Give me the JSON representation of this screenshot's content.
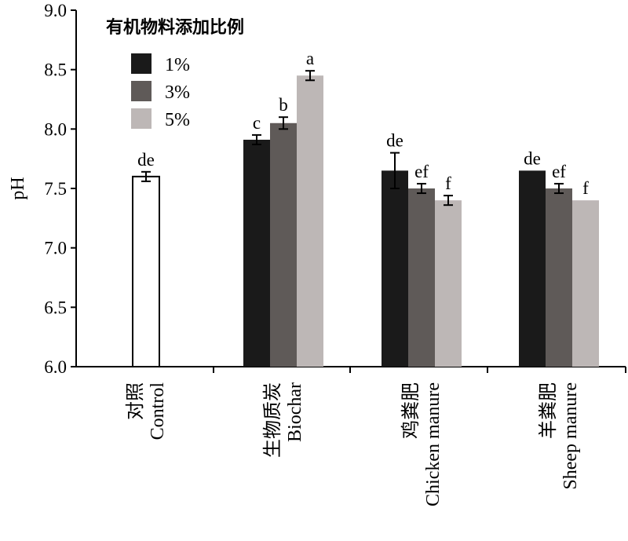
{
  "chart_data": {
    "type": "bar",
    "ylabel": "pH",
    "ylim": [
      6.0,
      9.0
    ],
    "yticks": [
      "6.0",
      "6.5",
      "7.0",
      "7.5",
      "8.0",
      "8.5",
      "9.0"
    ],
    "legend_title": "有机物料添加比例",
    "legend_placement": "top-left",
    "grid": false,
    "series": [
      {
        "name": "1%",
        "color": "#1a1a1a"
      },
      {
        "name": "3%",
        "color": "#5f5a58"
      },
      {
        "name": "5%",
        "color": "#bdb7b6"
      }
    ],
    "control": {
      "value": 7.6,
      "error": 0.04,
      "sig": "de",
      "color": "#ffffff",
      "label_cn": "对照",
      "label_en": "Control"
    },
    "groups": [
      {
        "label_cn": "生物质炭",
        "label_en": "Biochar",
        "values": [
          7.91,
          8.05,
          8.45
        ],
        "errors": [
          0.04,
          0.05,
          0.04
        ],
        "sig": [
          "c",
          "b",
          "a"
        ]
      },
      {
        "label_cn": "鸡粪肥",
        "label_en": "Chicken manure",
        "values": [
          7.65,
          7.5,
          7.4
        ],
        "errors": [
          0.15,
          0.04,
          0.04
        ],
        "sig": [
          "de",
          "ef",
          "f"
        ]
      },
      {
        "label_cn": "羊粪肥",
        "label_en": "Sheep manure",
        "values": [
          7.65,
          7.5,
          7.4
        ],
        "errors": [
          0.0,
          0.04,
          0.0
        ],
        "sig": [
          "de",
          "ef",
          "f"
        ]
      }
    ]
  }
}
